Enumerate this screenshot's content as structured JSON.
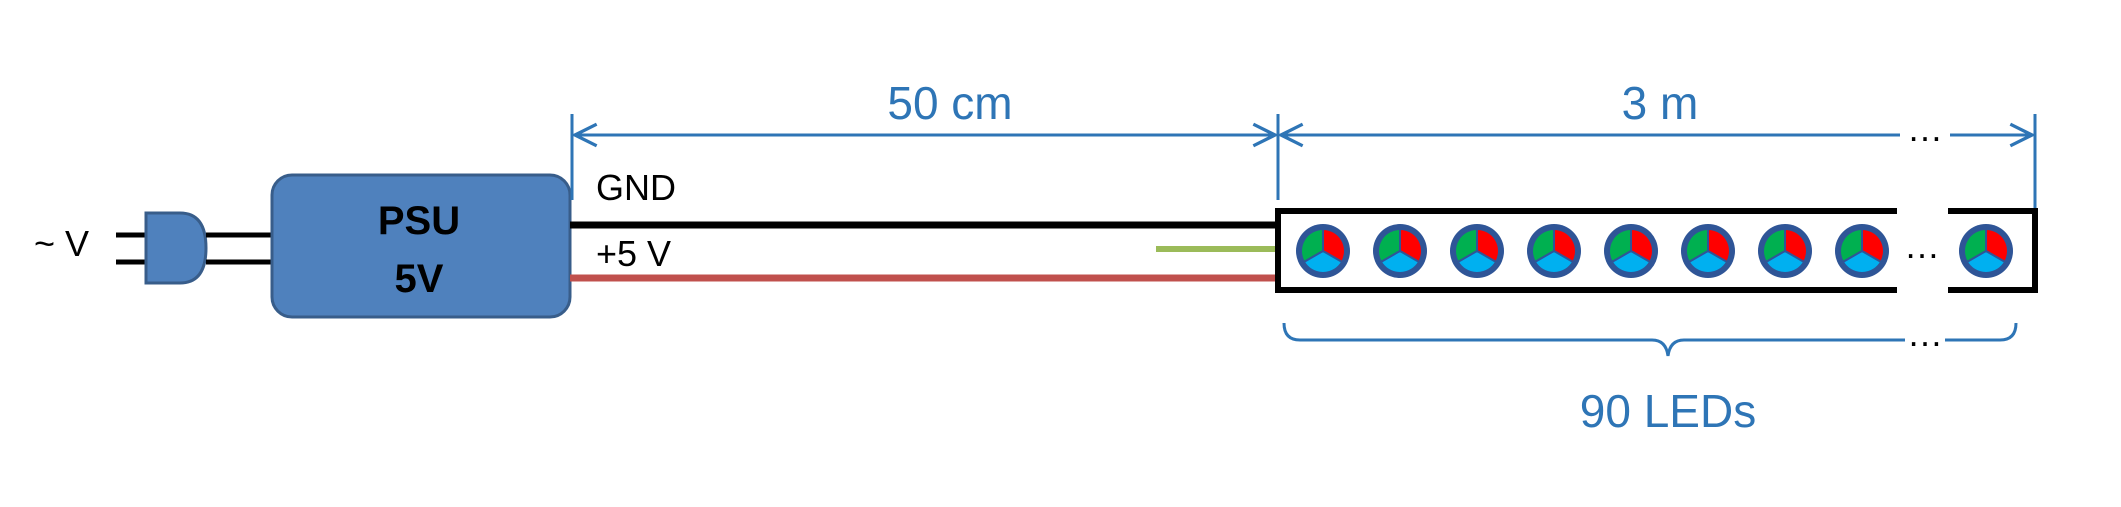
{
  "labels": {
    "ac_input": "~ V",
    "psu_line1": "PSU",
    "psu_line2": "5V",
    "gnd": "GND",
    "plus5v": "+5 V",
    "cable_length": "50 cm",
    "strip_length": "3 m",
    "ellipsis": "…",
    "led_count": "90 LEDs"
  },
  "colors": {
    "dimension": "#2e75b6",
    "psu_fill": "#4f81bd",
    "psu_stroke": "#385d8a",
    "gnd_wire": "#000000",
    "power_wire": "#c0504d",
    "data_wire": "#9bbb59",
    "led_red": "#ff0000",
    "led_green": "#00b050",
    "led_blue": "#00b0f0",
    "led_ring": "#2f5597"
  },
  "components": {
    "power_plug": "plug-icon",
    "led": "rgb-led-icon"
  }
}
